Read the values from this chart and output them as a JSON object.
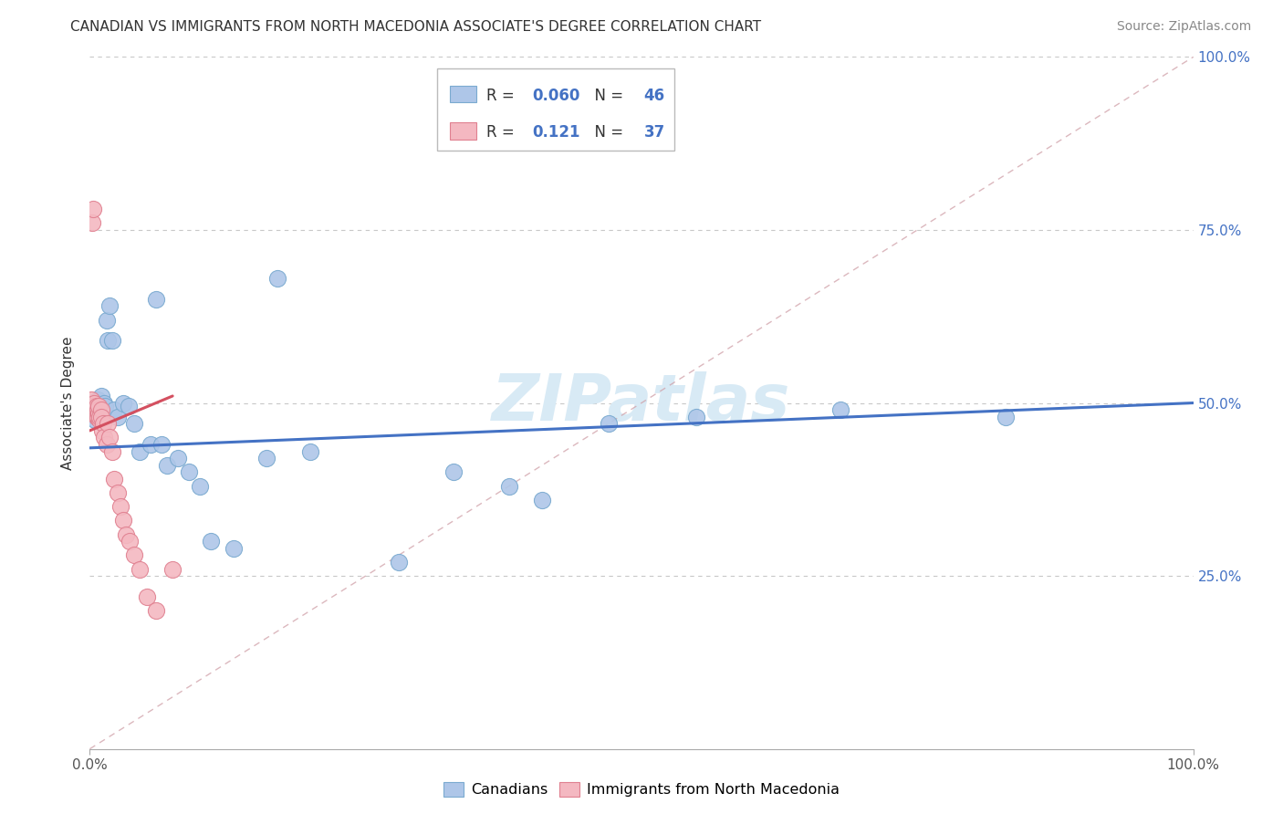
{
  "title": "CANADIAN VS IMMIGRANTS FROM NORTH MACEDONIA ASSOCIATE'S DEGREE CORRELATION CHART",
  "source": "Source: ZipAtlas.com",
  "ylabel": "Associate's Degree",
  "watermark": "ZIPatlas",
  "canadians_x": [
    0.002,
    0.003,
    0.004,
    0.005,
    0.005,
    0.006,
    0.007,
    0.007,
    0.008,
    0.009,
    0.01,
    0.01,
    0.011,
    0.012,
    0.013,
    0.014,
    0.015,
    0.016,
    0.018,
    0.02,
    0.022,
    0.025,
    0.03,
    0.035,
    0.04,
    0.045,
    0.055,
    0.06,
    0.065,
    0.07,
    0.08,
    0.09,
    0.1,
    0.11,
    0.13,
    0.16,
    0.17,
    0.2,
    0.28,
    0.33,
    0.38,
    0.41,
    0.47,
    0.55,
    0.68,
    0.83
  ],
  "canadians_y": [
    0.49,
    0.5,
    0.485,
    0.495,
    0.475,
    0.5,
    0.49,
    0.505,
    0.48,
    0.495,
    0.5,
    0.51,
    0.49,
    0.485,
    0.5,
    0.495,
    0.62,
    0.59,
    0.64,
    0.59,
    0.49,
    0.48,
    0.5,
    0.495,
    0.47,
    0.43,
    0.44,
    0.65,
    0.44,
    0.41,
    0.42,
    0.4,
    0.38,
    0.3,
    0.29,
    0.42,
    0.68,
    0.43,
    0.27,
    0.4,
    0.38,
    0.36,
    0.47,
    0.48,
    0.49,
    0.48
  ],
  "macedonia_x": [
    0.001,
    0.002,
    0.002,
    0.003,
    0.003,
    0.004,
    0.004,
    0.005,
    0.005,
    0.006,
    0.006,
    0.007,
    0.007,
    0.008,
    0.008,
    0.009,
    0.009,
    0.01,
    0.01,
    0.011,
    0.012,
    0.013,
    0.015,
    0.016,
    0.018,
    0.02,
    0.022,
    0.025,
    0.028,
    0.03,
    0.033,
    0.036,
    0.04,
    0.045,
    0.052,
    0.06,
    0.075
  ],
  "macedonia_y": [
    0.505,
    0.495,
    0.76,
    0.49,
    0.78,
    0.5,
    0.49,
    0.49,
    0.485,
    0.495,
    0.48,
    0.49,
    0.48,
    0.485,
    0.495,
    0.475,
    0.48,
    0.49,
    0.48,
    0.46,
    0.47,
    0.45,
    0.44,
    0.47,
    0.45,
    0.43,
    0.39,
    0.37,
    0.35,
    0.33,
    0.31,
    0.3,
    0.28,
    0.26,
    0.22,
    0.2,
    0.26
  ],
  "canadian_line_x": [
    0.0,
    1.0
  ],
  "canadian_line_y": [
    0.435,
    0.5
  ],
  "macedonia_line_x": [
    0.0,
    0.075
  ],
  "macedonia_line_y": [
    0.46,
    0.51
  ],
  "diag_line_x": [
    0.0,
    1.0
  ],
  "diag_line_y": [
    0.0,
    1.0
  ],
  "canadian_line_color": "#4472c4",
  "macedonia_line_color": "#d45060",
  "diag_line_color": "#d0a0a8",
  "dot_color_canadian": "#aec6e8",
  "dot_color_macedonia": "#f4b8c1",
  "dot_edge_canadian": "#7aaad0",
  "dot_edge_macedonia": "#e08090",
  "xlim": [
    0.0,
    1.0
  ],
  "ylim": [
    0.0,
    1.0
  ],
  "xtick_labels": [
    "0.0%",
    "100.0%"
  ],
  "ytick_positions": [
    0.25,
    0.5,
    0.75,
    1.0
  ],
  "ytick_labels": [
    "25.0%",
    "50.0%",
    "75.0%",
    "100.0%"
  ],
  "title_fontsize": 11,
  "ylabel_fontsize": 11,
  "tick_fontsize": 11,
  "watermark_fontsize": 52,
  "watermark_color": "#d8eaf5",
  "source_fontsize": 10,
  "legend_R1": "0.060",
  "legend_N1": "46",
  "legend_R2": "0.121",
  "legend_N2": "37"
}
